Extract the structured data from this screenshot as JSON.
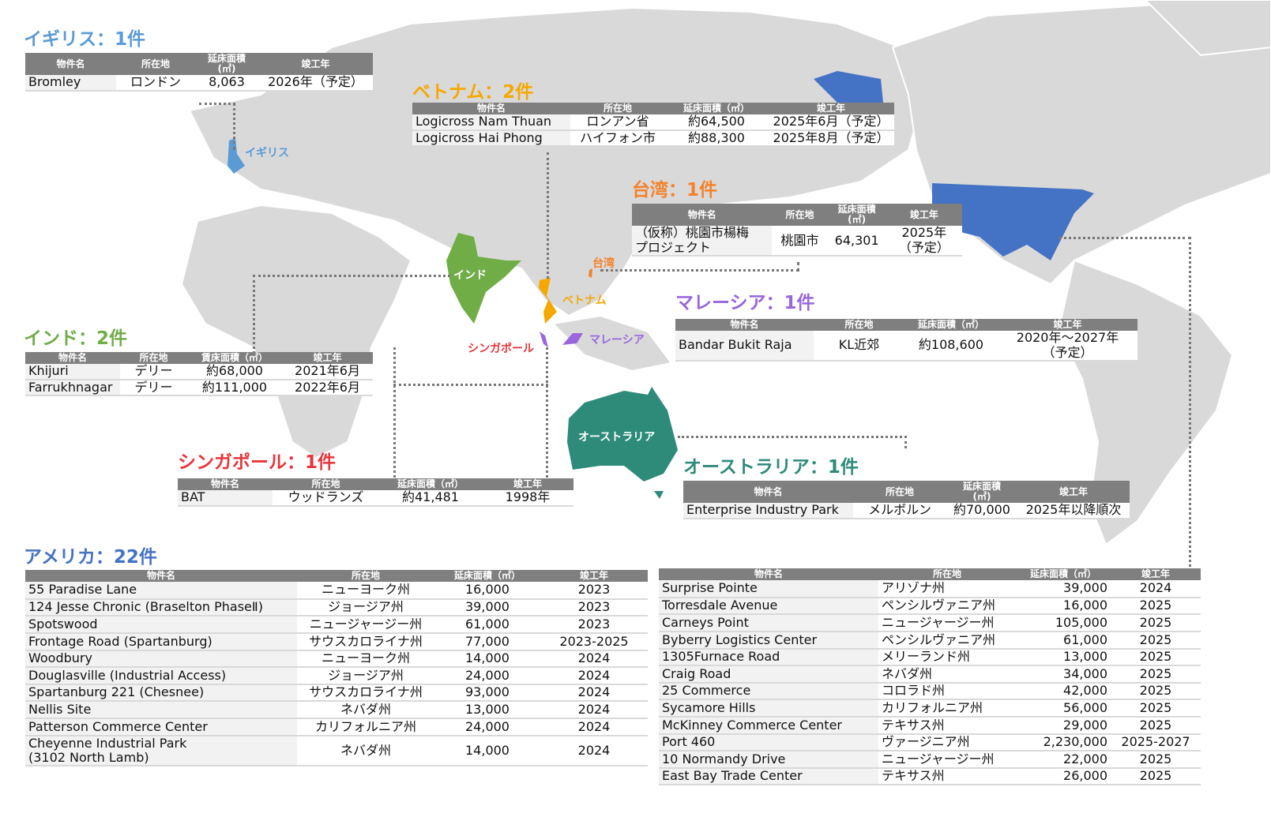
{
  "colors": {
    "uk": "#5b9bd5",
    "vietnam": "#f5a800",
    "taiwan": "#f4822a",
    "malaysia": "#9966dd",
    "india": "#70ad47",
    "singapore": "#e8363c",
    "australia": "#2e8b7a",
    "usa": "#4472c4",
    "map": "#d9d9d9",
    "header": "#7f7f7f"
  },
  "map_labels": {
    "uk": "イギリス",
    "india": "インド",
    "vietnam": "ベトナム",
    "taiwan": "台湾",
    "singapore": "シンガポール",
    "malaysia": "マレーシア",
    "australia": "オーストラリア"
  },
  "uk": {
    "title": "イギリス：1件",
    "headers": [
      "物件名",
      "所在地",
      "延床面積\n(㎡)",
      "竣工年"
    ],
    "rows": [
      [
        "Bromley",
        "ロンドン",
        "8,063",
        "2026年（予定）"
      ]
    ]
  },
  "vietnam": {
    "title": "ベトナム：2件",
    "headers": [
      "物件名",
      "所在地",
      "延床面積（㎡）",
      "竣工年"
    ],
    "rows": [
      [
        "Logicross Nam Thuan",
        "ロンアン省",
        "約64,500",
        "2025年6月（予定）"
      ],
      [
        "Logicross Hai Phong",
        "ハイフォン市",
        "約88,300",
        "2025年8月（予定）"
      ]
    ]
  },
  "taiwan": {
    "title": "台湾：1件",
    "headers": [
      "物件名",
      "所在地",
      "延床面積\n(㎡)",
      "竣工年"
    ],
    "rows": [
      [
        "（仮称）桃園市楊梅\nプロジェクト",
        "桃園市",
        "64,301",
        "2025年\n（予定）"
      ]
    ]
  },
  "malaysia": {
    "title": "マレーシア：1件",
    "headers": [
      "物件名",
      "所在地",
      "延床面積（㎡）",
      "竣工年"
    ],
    "rows": [
      [
        "Bandar Bukit Raja",
        "KL近郊",
        "約108,600",
        "2020年～2027年\n（予定）"
      ]
    ]
  },
  "india": {
    "title": "インド：2件",
    "headers": [
      "物件名",
      "所在地",
      "賃床面積（㎡）",
      "竣工年"
    ],
    "rows": [
      [
        "Khijuri",
        "デリー",
        "約68,000",
        "2021年6月"
      ],
      [
        "Farrukhnagar",
        "デリー",
        "約111,000",
        "2022年6月"
      ]
    ]
  },
  "singapore": {
    "title": "シンガポール：1件",
    "headers": [
      "物件名",
      "所在地",
      "延床面積（㎡）",
      "竣工年"
    ],
    "rows": [
      [
        "BAT",
        "ウッドランズ",
        "約41,481",
        "1998年"
      ]
    ]
  },
  "australia": {
    "title": "オーストラリア：1件",
    "headers": [
      "物件名",
      "所在地",
      "延床面積\n(㎡)",
      "竣工年"
    ],
    "rows": [
      [
        "Enterprise Industry Park",
        "メルボルン",
        "約70,000",
        "2025年以降順次"
      ]
    ]
  },
  "usa": {
    "title": "アメリカ：22件",
    "headers": [
      "物件名",
      "所在地",
      "延床面積（㎡）",
      "竣工年"
    ],
    "rows_left": [
      [
        "55 Paradise Lane",
        "ニューヨーク州",
        "16,000",
        "2023"
      ],
      [
        "124 Jesse Chronic (Braselton PhaseⅡ)",
        "ジョージア州",
        "39,000",
        "2023"
      ],
      [
        "Spotswood",
        "ニュージャージー州",
        "61,000",
        "2023"
      ],
      [
        "Frontage Road (Spartanburg)",
        "サウスカロライナ州",
        "77,000",
        "2023-2025"
      ],
      [
        "Woodbury",
        "ニューヨーク州",
        "14,000",
        "2024"
      ],
      [
        "Douglasville (Industrial Access)",
        "ジョージア州",
        "24,000",
        "2024"
      ],
      [
        "Spartanburg 221 (Chesnee)",
        "サウスカロライナ州",
        "93,000",
        "2024"
      ],
      [
        "Nellis Site",
        "ネバダ州",
        "13,000",
        "2024"
      ],
      [
        "Patterson Commerce Center",
        "カリフォルニア州",
        "24,000",
        "2024"
      ],
      [
        "Cheyenne Industrial Park\n(3102 North Lamb)",
        "ネバダ州",
        "14,000",
        "2024"
      ]
    ],
    "rows_right": [
      [
        "Surprise Pointe",
        "アリゾナ州",
        "39,000",
        "2024"
      ],
      [
        "Torresdale Avenue",
        "ペンシルヴァニア州",
        "16,000",
        "2025"
      ],
      [
        "Carneys Point",
        "ニュージャージー州",
        "105,000",
        "2025"
      ],
      [
        "Byberry Logistics Center",
        "ペンシルヴァニア州",
        "61,000",
        "2025"
      ],
      [
        "1305Furnace Road",
        "メリーランド州",
        "13,000",
        "2025"
      ],
      [
        "Craig Road",
        "ネバダ州",
        "34,000",
        "2025"
      ],
      [
        "25 Commerce",
        "コロラド州",
        "42,000",
        "2025"
      ],
      [
        "Sycamore Hills",
        "カリフォルニア州",
        "56,000",
        "2025"
      ],
      [
        "McKinney Commerce Center",
        "テキサス州",
        "29,000",
        "2025"
      ],
      [
        "Port 460",
        "ヴァージニア州",
        "2,230,000",
        "2025-2027"
      ],
      [
        "10 Normandy Drive",
        "ニュージャージー州",
        "22,000",
        "2025"
      ],
      [
        "East Bay Trade Center",
        "テキサス州",
        "26,000",
        "2025"
      ]
    ]
  }
}
